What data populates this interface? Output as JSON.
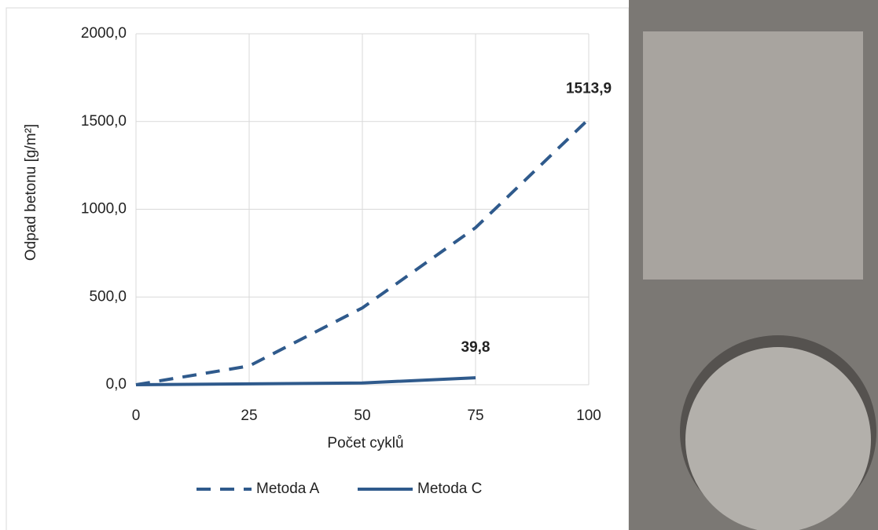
{
  "chart_data": {
    "type": "line",
    "x_label": "Počet cyklů",
    "y_label": "Odpad betonu [g/m²]",
    "x": [
      0,
      25,
      50,
      75,
      100
    ],
    "series": [
      {
        "name": "Metoda A",
        "color": "#2f5a8c",
        "dash": true,
        "values": [
          0,
          107,
          438,
          895,
          1513.9
        ],
        "value_labels": [
          null,
          null,
          null,
          null,
          "1513,9"
        ]
      },
      {
        "name": "Metoda C",
        "color": "#2f5a8c",
        "dash": false,
        "values": [
          0,
          5,
          10,
          39.8,
          null
        ],
        "value_labels": [
          null,
          null,
          null,
          "39,8",
          null
        ]
      }
    ],
    "xlim": [
      0,
      100
    ],
    "xticks": [
      0,
      25,
      50,
      75,
      100
    ],
    "ylim": [
      0,
      2000
    ],
    "yticks": [
      {
        "value": 0,
        "label": "0,0"
      },
      {
        "value": 500,
        "label": "500,0"
      },
      {
        "value": 1000,
        "label": "1000,0"
      },
      {
        "value": 1500,
        "label": "1500,0"
      },
      {
        "value": 2000,
        "label": "2000,0"
      }
    ],
    "grid": true,
    "legend": "bottom"
  }
}
